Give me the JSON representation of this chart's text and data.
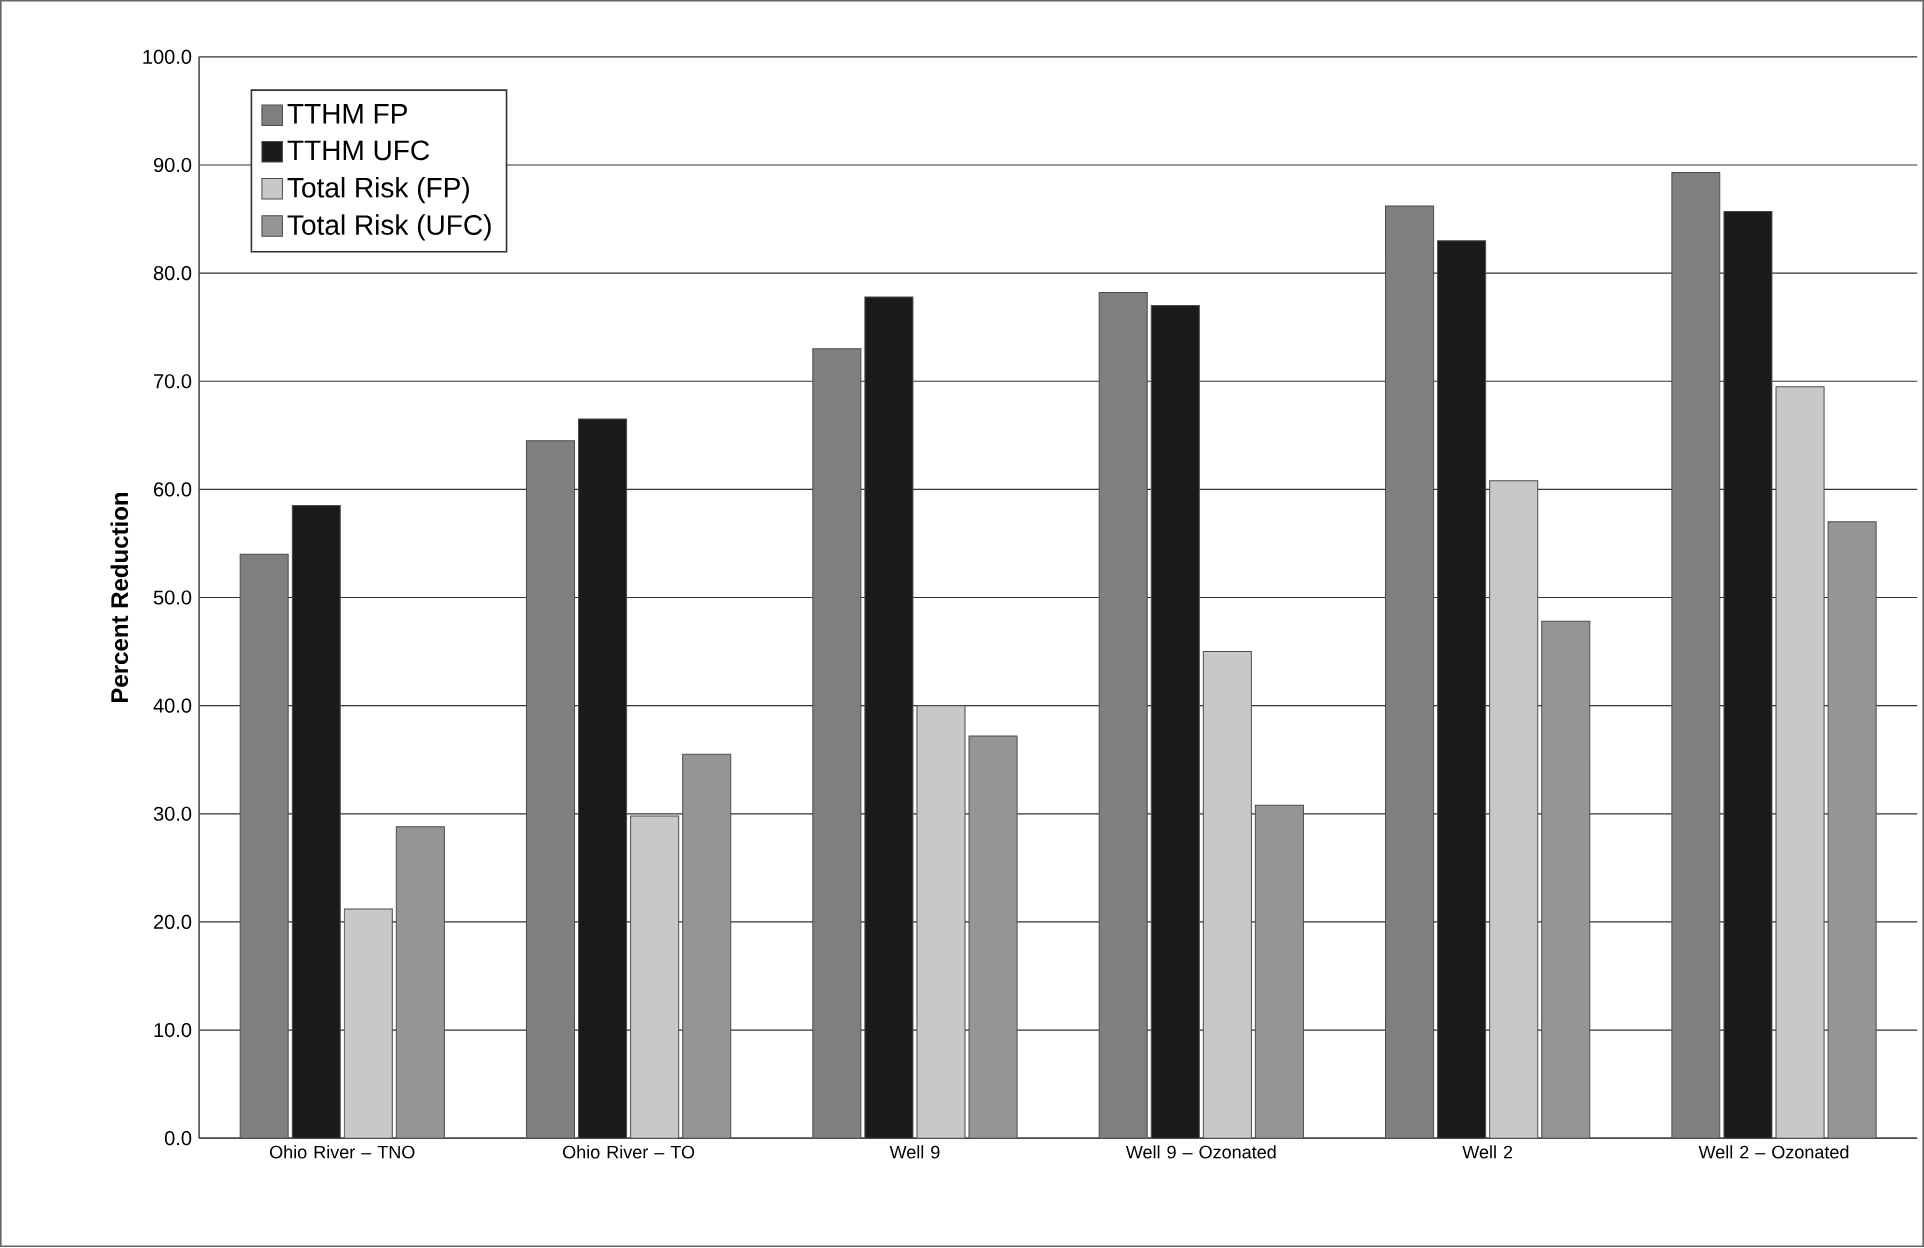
{
  "chart_data": {
    "type": "bar",
    "ylabel": "Percent Reduction",
    "categories": [
      "Ohio River – TNO",
      "Ohio River – TO",
      "Well 9",
      "Well 9 – Ozonated",
      "Well 2",
      "Well 2 – Ozonated"
    ],
    "series": [
      {
        "name": "TTHM FP",
        "color": "#7f7f7f",
        "values": [
          54.0,
          64.5,
          73.0,
          78.2,
          86.2,
          89.3
        ]
      },
      {
        "name": "TTHM UFC",
        "color": "#1a1a1a",
        "values": [
          58.5,
          66.5,
          77.8,
          77.0,
          83.0,
          85.7
        ]
      },
      {
        "name": "Total Risk (FP)",
        "color": "#c8c8c8",
        "values": [
          21.2,
          29.8,
          40.0,
          45.0,
          60.8,
          69.5
        ]
      },
      {
        "name": "Total Risk (UFC)",
        "color": "#959595",
        "values": [
          28.8,
          35.5,
          37.2,
          30.8,
          47.8,
          57.0
        ]
      }
    ],
    "ylim": [
      0,
      100
    ],
    "yticks": [
      {
        "value": 0,
        "label": "0.0"
      },
      {
        "value": 10,
        "label": "10.0"
      },
      {
        "value": 20,
        "label": "20.0"
      },
      {
        "value": 30,
        "label": "30.0"
      },
      {
        "value": 40,
        "label": "40.0"
      },
      {
        "value": 50,
        "label": "50.0"
      },
      {
        "value": 60,
        "label": "60.0"
      },
      {
        "value": 70,
        "label": "70.0"
      },
      {
        "value": 80,
        "label": "80.0"
      },
      {
        "value": 90,
        "label": "90.0"
      },
      {
        "value": 100,
        "label": "100.0"
      }
    ],
    "grid": "y",
    "legend": "top left"
  }
}
